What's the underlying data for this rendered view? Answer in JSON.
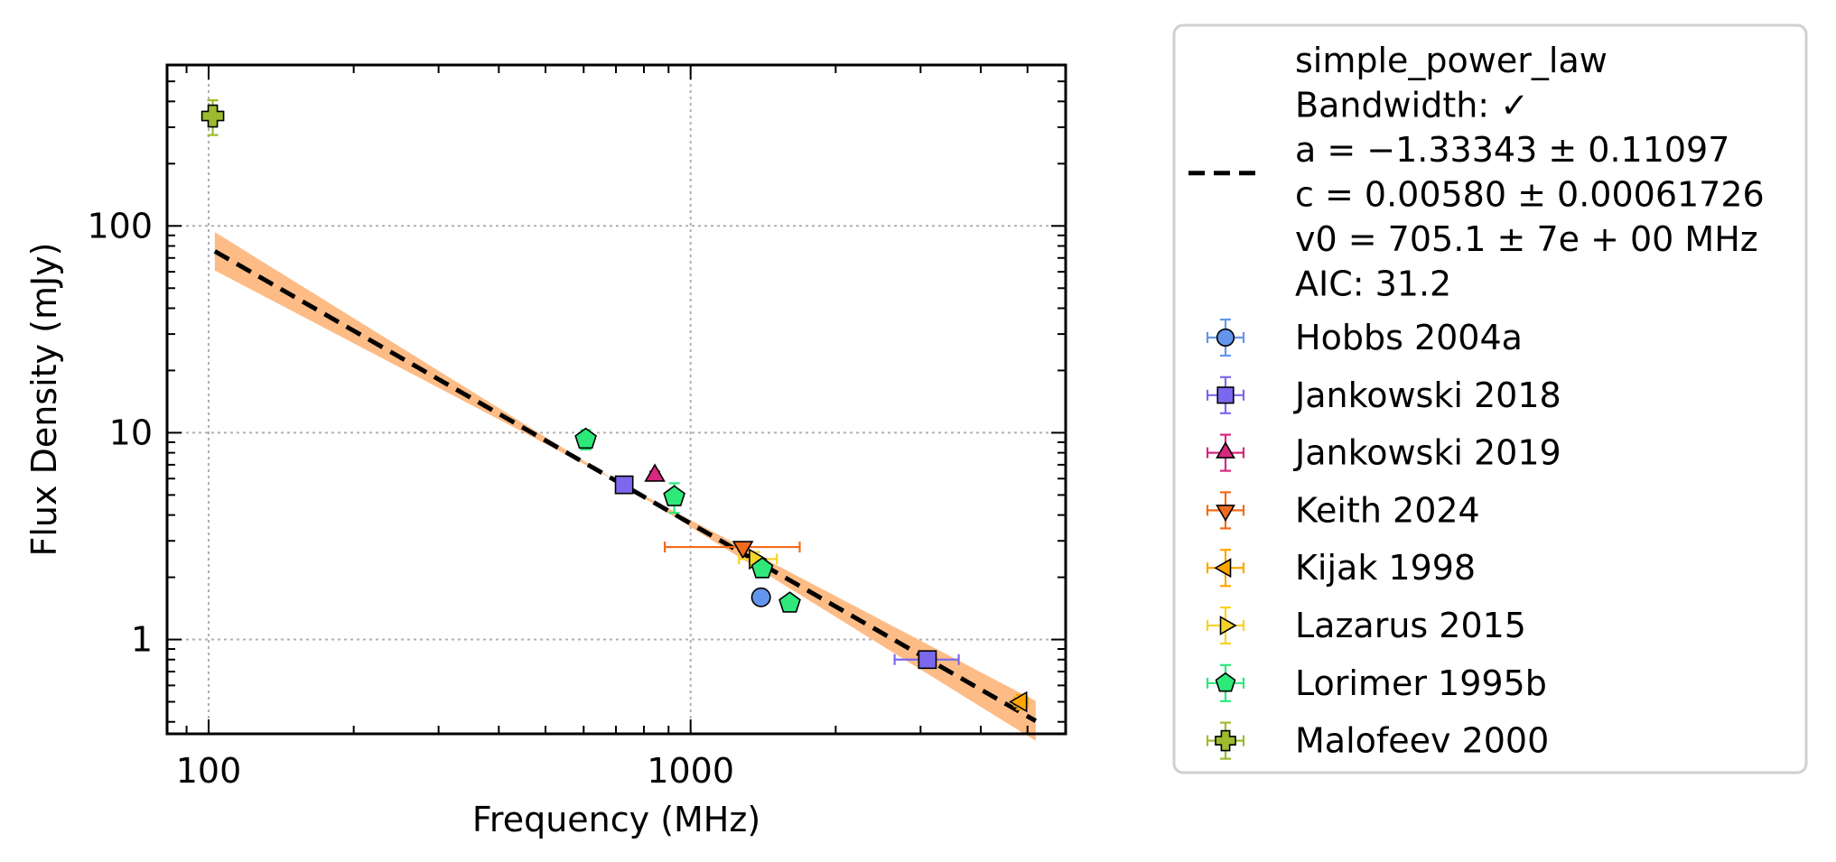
{
  "chart_data": {
    "type": "scatter",
    "xscale": "log",
    "yscale": "log",
    "xlabel": "Frequency (MHz)",
    "ylabel": "Flux Density (mJy)",
    "xlim": [
      82,
      6000
    ],
    "ylim": [
      0.35,
      600
    ],
    "xticks": [
      100,
      1000
    ],
    "xtick_labels": [
      "100",
      "1000"
    ],
    "yticks": [
      1,
      10,
      100
    ],
    "ytick_labels": [
      "1",
      "10",
      "100"
    ],
    "grid": true,
    "legend_position": "outside-right",
    "fit": {
      "model": "simple_power_law",
      "legend_lines": [
        "simple_power_law",
        "Bandwidth: ✓",
        "a = −1.33343 ± 0.11097",
        "c = 0.00580 ± 0.00061726",
        "v0 = 705.1 ± 7e + 00 MHz",
        "AIC: 31.2"
      ],
      "x_range": [
        103,
        5200
      ],
      "a": -1.33343,
      "a_err": 0.11097,
      "v0": 705.1,
      "S0": 5.8,
      "line_color": "#000000",
      "band_color": "#FDB87F"
    },
    "series": [
      {
        "name": "Hobbs 2004a",
        "marker": "circle",
        "color": "#6495ED",
        "points": [
          {
            "x": 1400,
            "y": 1.6,
            "xerr": 0,
            "yerr_lo": 0.0,
            "yerr_hi": 0.0
          }
        ]
      },
      {
        "name": "Jankowski 2018",
        "marker": "square",
        "color": "#7B68EE",
        "points": [
          {
            "x": 728,
            "y": 5.6,
            "xerr_lo": 0,
            "xerr_hi": 0,
            "yerr_lo": 0.3,
            "yerr_hi": 0.3
          },
          {
            "x": 3100,
            "y": 0.8,
            "xerr_lo": 450,
            "xerr_hi": 500,
            "yerr_lo": 0.05,
            "yerr_hi": 0.05
          }
        ]
      },
      {
        "name": "Jankowski 2019",
        "marker": "triangle-up",
        "color": "#D6287E",
        "points": [
          {
            "x": 843,
            "y": 6.2,
            "xerr_lo": 0,
            "xerr_hi": 0,
            "yerr_lo": 0.3,
            "yerr_hi": 0.3
          }
        ]
      },
      {
        "name": "Keith 2024",
        "marker": "triangle-down",
        "color": "#F26B1D",
        "points": [
          {
            "x": 1284,
            "y": 2.8,
            "xerr_lo": 400,
            "xerr_hi": 400,
            "yerr_lo": 0.1,
            "yerr_hi": 0.1
          }
        ]
      },
      {
        "name": "Kijak 1998",
        "marker": "triangle-left",
        "color": "#FFA500",
        "points": [
          {
            "x": 4850,
            "y": 0.5,
            "xerr_lo": 150,
            "xerr_hi": 150,
            "yerr_lo": 0.04,
            "yerr_hi": 0.04
          }
        ]
      },
      {
        "name": "Lazarus 2015",
        "marker": "triangle-right",
        "color": "#F5D42A",
        "points": [
          {
            "x": 1360,
            "y": 2.45,
            "xerr_lo": 100,
            "xerr_hi": 150,
            "yerr_lo": 0.2,
            "yerr_hi": 0.2
          }
        ]
      },
      {
        "name": "Lorimer 1995b",
        "marker": "pentagon",
        "color": "#2EE87A",
        "points": [
          {
            "x": 606,
            "y": 9.3,
            "xerr_lo": 0,
            "xerr_hi": 0,
            "yerr_lo": 1.0,
            "yerr_hi": 1.0
          },
          {
            "x": 925,
            "y": 4.9,
            "xerr_lo": 0,
            "xerr_hi": 0,
            "yerr_lo": 0.8,
            "yerr_hi": 0.8
          },
          {
            "x": 1408,
            "y": 2.2,
            "xerr_lo": 0,
            "xerr_hi": 0,
            "yerr_lo": 0.2,
            "yerr_hi": 0.2
          },
          {
            "x": 1606,
            "y": 1.5,
            "xerr_lo": 0,
            "xerr_hi": 0,
            "yerr_lo": 0.1,
            "yerr_hi": 0.1
          }
        ]
      },
      {
        "name": "Malofeev 2000",
        "marker": "plus",
        "color": "#9DBB2F",
        "points": [
          {
            "x": 102,
            "y": 340,
            "xerr_lo": 0,
            "xerr_hi": 0,
            "yerr_lo": 65,
            "yerr_hi": 65
          }
        ]
      }
    ]
  }
}
